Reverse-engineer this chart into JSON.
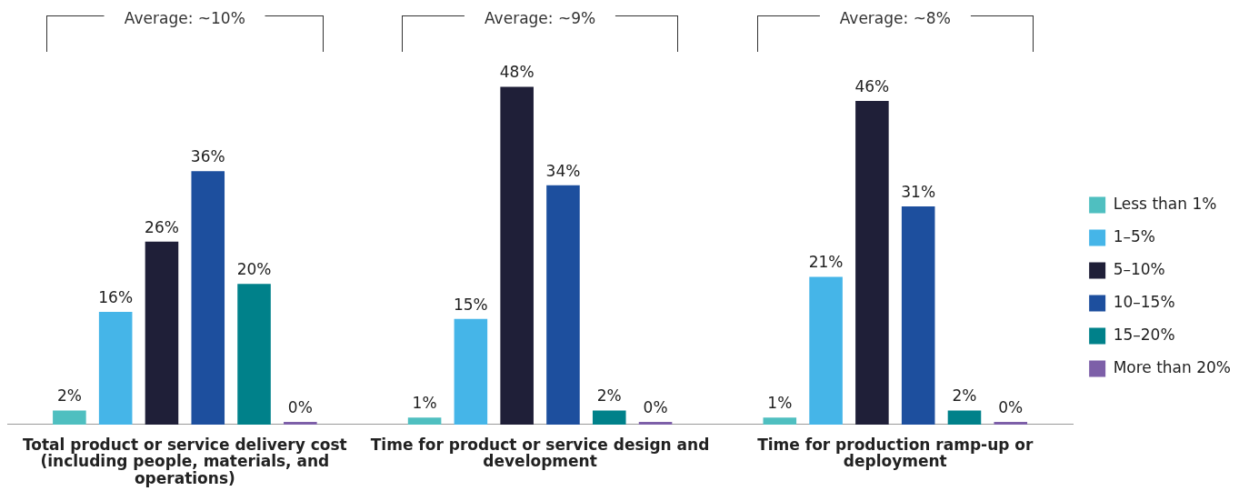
{
  "chart_data": {
    "type": "bar",
    "categories": [
      "Total product or service delivery cost (including people, materials, and operations)",
      "Time for product or service design and development",
      "Time for production ramp-up or deployment"
    ],
    "series": [
      {
        "name": "Less than 1%",
        "color": "#4fbfc0",
        "values": [
          2,
          1,
          1
        ],
        "value_labels": [
          "2%",
          "1%",
          "1%"
        ]
      },
      {
        "name": "1–5%",
        "color": "#45b5e8",
        "values": [
          16,
          15,
          21
        ],
        "value_labels": [
          "16%",
          "15%",
          "21%"
        ]
      },
      {
        "name": "5–10%",
        "color": "#1f1f38",
        "values": [
          26,
          48,
          46
        ],
        "value_labels": [
          "26%",
          "48%",
          "46%"
        ]
      },
      {
        "name": "10–15%",
        "color": "#1d4f9e",
        "values": [
          36,
          34,
          31
        ],
        "value_labels": [
          "36%",
          "34%",
          "31%"
        ]
      },
      {
        "name": "15–20%",
        "color": "#00818a",
        "values": [
          20,
          2,
          2
        ],
        "value_labels": [
          "20%",
          "2%",
          "2%"
        ]
      },
      {
        "name": "More than 20%",
        "color": "#7d5fa8",
        "values": [
          0,
          0,
          0
        ],
        "value_labels": [
          "0%",
          "0%",
          "0%"
        ]
      }
    ],
    "annotations": [
      "Average: ~10%",
      "Average: ~9%",
      "Average: ~8%"
    ],
    "legend": "right",
    "grid": false
  }
}
